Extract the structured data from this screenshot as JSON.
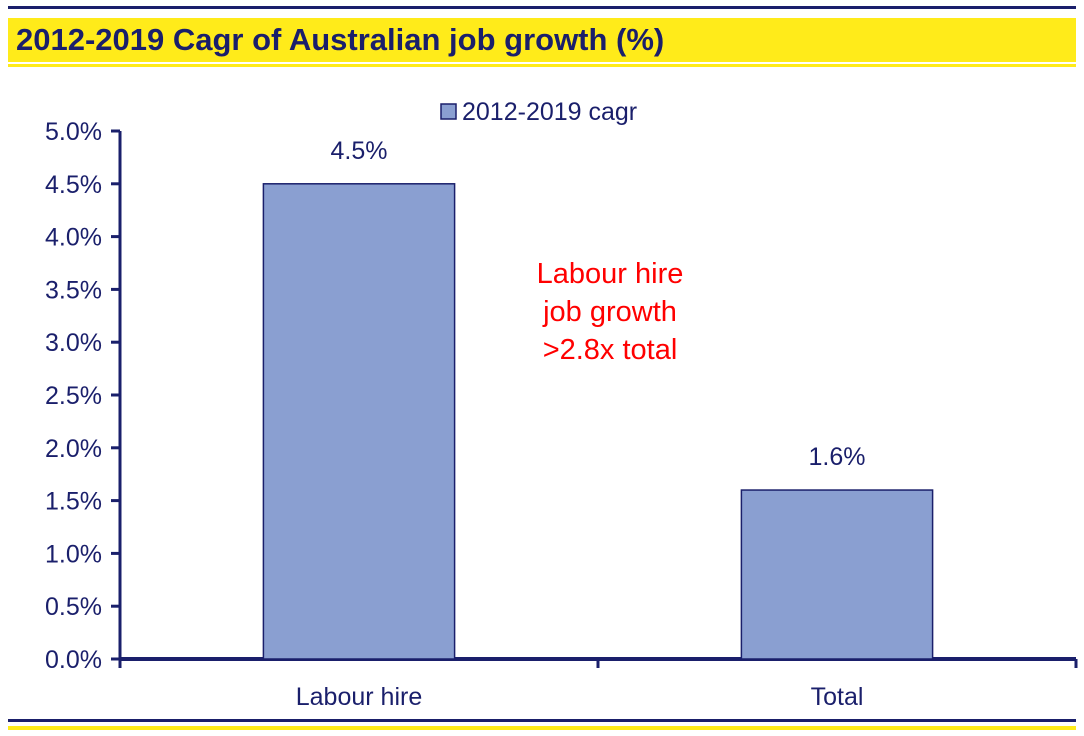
{
  "title": "2012-2019 Cagr of Australian job growth (%)",
  "colors": {
    "bar": "#8a9fd1",
    "bar_edge": "#1a1f6b",
    "axis": "#1a1f6b",
    "text": "#1a1f6b",
    "annotation": "#ff0000",
    "accent": "#ffeb1a"
  },
  "chart_data": {
    "type": "bar",
    "categories": [
      "Labour hire",
      "Total"
    ],
    "series": [
      {
        "name": "2012-2019 cagr",
        "values": [
          4.5,
          1.6
        ]
      }
    ],
    "value_labels": [
      "4.5%",
      "1.6%"
    ],
    "ylim": [
      0,
      5.0
    ],
    "yticks": [
      "0.0%",
      "0.5%",
      "1.0%",
      "1.5%",
      "2.0%",
      "2.5%",
      "3.0%",
      "3.5%",
      "4.0%",
      "4.5%",
      "5.0%"
    ],
    "legend": {
      "label": "2012-2019 cagr",
      "position": "top-center"
    },
    "annotation": [
      "Labour hire",
      "job growth",
      ">2.8x total"
    ],
    "grid": false
  }
}
